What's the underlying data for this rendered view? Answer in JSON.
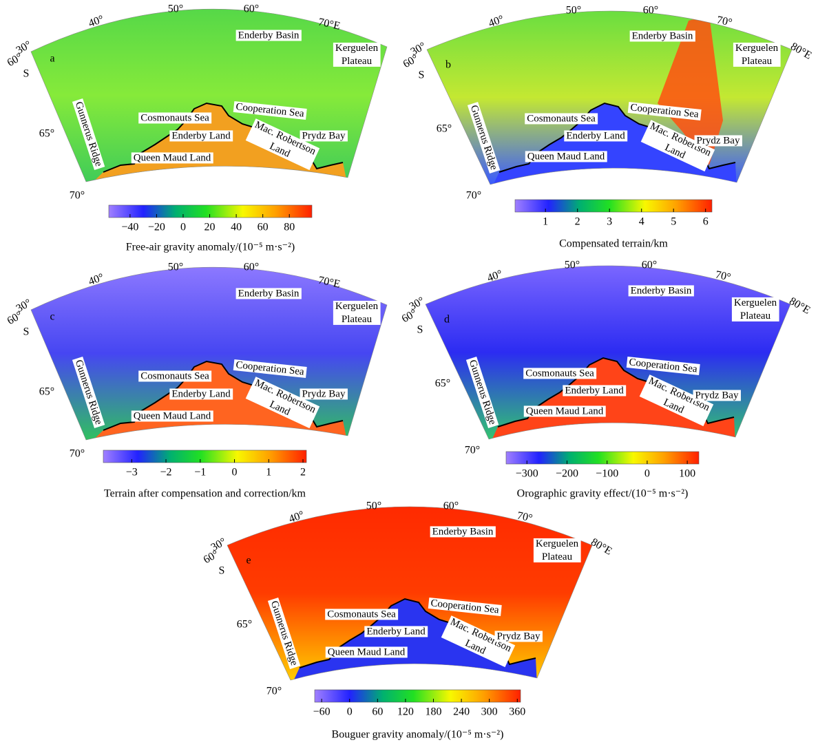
{
  "panels": [
    {
      "letter": "a",
      "lon_labels": [
        "30°",
        "40°",
        "50°",
        "60°",
        "70°E"
      ],
      "lat_labels": [
        "60°",
        "S",
        "65°",
        "70°"
      ],
      "places": [
        [
          "Enderby Basin"
        ],
        [
          "Kerguelen",
          "Plateau"
        ],
        [
          "Cosmonauts Sea"
        ],
        [
          "Cooperation Sea"
        ],
        [
          "Enderby Land"
        ],
        [
          "Mac. Robertson",
          "Land"
        ],
        [
          "Prydz Bay"
        ],
        [
          "Queen Maud Land"
        ],
        [
          "Gunnerus Ridge"
        ]
      ],
      "colorbar": {
        "label": "Free-air gravity anomaly/(10⁻⁵ m·s⁻²)",
        "range": [
          -56,
          97
        ],
        "ticks": [
          {
            "value": -40,
            "label": "−40"
          },
          {
            "value": -20,
            "label": "−20"
          },
          0,
          20,
          40,
          60,
          80
        ]
      }
    },
    {
      "letter": "b",
      "lon_labels": [
        "30°",
        "40°",
        "50°",
        "60°",
        "70°",
        "80°E"
      ],
      "lat_labels": [
        "60°",
        "S",
        "65°",
        "70°"
      ],
      "places": [
        [
          "Enderby Basin"
        ],
        [
          "Kerguelen",
          "Plateau"
        ],
        [
          "Cosmonauts Sea"
        ],
        [
          "Cooperation Sea"
        ],
        [
          "Enderby Land"
        ],
        [
          "Mac. Robertson",
          "Land"
        ],
        [
          "Prydz Bay"
        ],
        [
          "Queen Maud Land"
        ],
        [
          "Gunnerus Ridge"
        ]
      ],
      "colorbar": {
        "label": "Compensated terrain/km",
        "range": [
          0.05,
          6.2
        ],
        "ticks": [
          1,
          2,
          3,
          4,
          5,
          6
        ]
      }
    },
    {
      "letter": "c",
      "lon_labels": [
        "30°",
        "40°",
        "50°",
        "60°",
        "70°E"
      ],
      "lat_labels": [
        "60°",
        "S",
        "65°",
        "70°"
      ],
      "places": [
        [
          "Enderby Basin"
        ],
        [
          "Kerguelen",
          "Plateau"
        ],
        [
          "Cosmonauts Sea"
        ],
        [
          "Cooperation Sea"
        ],
        [
          "Enderby Land"
        ],
        [
          "Mac. Robertson",
          "Land"
        ],
        [
          "Prydz Bay"
        ],
        [
          "Queen Maud Land"
        ],
        [
          "Gunnerus Ridge"
        ]
      ],
      "colorbar": {
        "label": "Terrain after compensation and correction/km",
        "range": [
          -3.83,
          2.1
        ],
        "ticks": [
          {
            "value": -3,
            "label": "−3"
          },
          {
            "value": -2,
            "label": "−2"
          },
          {
            "value": -1,
            "label": "−1"
          },
          0,
          1,
          2
        ]
      }
    },
    {
      "letter": "d",
      "lon_labels": [
        "30°",
        "40°",
        "50°",
        "60°",
        "70°",
        "80°E"
      ],
      "lat_labels": [
        "60°",
        "S",
        "65°",
        "70°"
      ],
      "places": [
        [
          "Enderby Basin"
        ],
        [
          "Kerguelen",
          "Plateau"
        ],
        [
          "Cosmonauts Sea"
        ],
        [
          "Cooperation Sea"
        ],
        [
          "Enderby Land"
        ],
        [
          "Mac. Robertson",
          "Land"
        ],
        [
          "Prydz Bay"
        ],
        [
          "Queen Maud Land"
        ],
        [
          "Gunnerus Ridge"
        ]
      ],
      "colorbar": {
        "label": "Orographic gravity effect/(10⁻⁵ m·s⁻²)",
        "range": [
          -352,
          129
        ],
        "ticks": [
          {
            "value": -300,
            "label": "−300"
          },
          {
            "value": -200,
            "label": "−200"
          },
          {
            "value": -100,
            "label": "−100"
          },
          0,
          100
        ]
      }
    },
    {
      "letter": "e",
      "lon_labels": [
        "30°",
        "40°",
        "50°",
        "60°",
        "70°",
        "80°E"
      ],
      "lat_labels": [
        "60°",
        "S",
        "65°",
        "70°"
      ],
      "places": [
        [
          "Enderby Basin"
        ],
        [
          "Kerguelen",
          "Plateau"
        ],
        [
          "Cosmonauts Sea"
        ],
        [
          "Cooperation Sea"
        ],
        [
          "Enderby Land"
        ],
        [
          "Mac. Robertson",
          "Land"
        ],
        [
          "Prydz Bay"
        ],
        [
          "Queen Maud Land"
        ],
        [
          "Gunnerus Ridge"
        ]
      ],
      "colorbar": {
        "label": "Bouguer gravity anomaly/(10⁻⁵ m·s⁻²)",
        "range": [
          -75,
          367
        ],
        "ticks": [
          {
            "value": -60,
            "label": "−60"
          },
          0,
          60,
          120,
          180,
          240,
          300,
          360
        ]
      }
    }
  ]
}
